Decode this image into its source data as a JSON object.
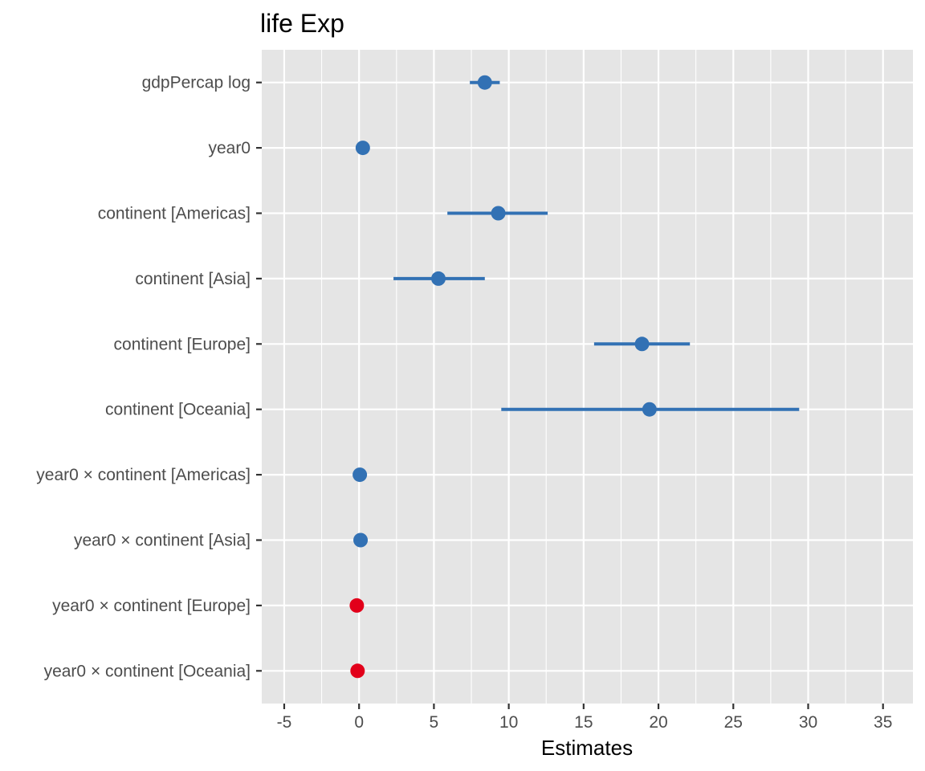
{
  "chart_data": {
    "type": "forest",
    "title": "life Exp",
    "xlabel": "Estimates",
    "ylabel": "",
    "xlim": [
      -6.5,
      37
    ],
    "xticks": [
      -5,
      0,
      5,
      10,
      15,
      20,
      25,
      30,
      35
    ],
    "xtick_labels": [
      "-5",
      "0",
      "5",
      "10",
      "15",
      "20",
      "25",
      "30",
      "35"
    ],
    "colors": {
      "positive": "#3271b4",
      "negative": "#e2001a",
      "panel": "#e5e5e5",
      "grid": "#ffffff"
    },
    "terms": [
      {
        "label": "gdpPercap log",
        "estimate": 8.4,
        "low": 7.4,
        "high": 9.4
      },
      {
        "label": "year0",
        "estimate": 0.25,
        "low": 0.15,
        "high": 0.35
      },
      {
        "label": "continent [Americas]",
        "estimate": 9.3,
        "low": 5.9,
        "high": 12.6
      },
      {
        "label": "continent [Asia]",
        "estimate": 5.3,
        "low": 2.3,
        "high": 8.4
      },
      {
        "label": "continent [Europe]",
        "estimate": 18.9,
        "low": 15.7,
        "high": 22.1
      },
      {
        "label": "continent [Oceania]",
        "estimate": 19.4,
        "low": 9.5,
        "high": 29.4
      },
      {
        "label": "year0 × continent [Americas]",
        "estimate": 0.05,
        "low": 0.0,
        "high": 0.1
      },
      {
        "label": "year0 × continent [Asia]",
        "estimate": 0.1,
        "low": 0.05,
        "high": 0.15
      },
      {
        "label": "year0 × continent [Europe]",
        "estimate": -0.15,
        "low": -0.2,
        "high": -0.1
      },
      {
        "label": "year0 × continent [Oceania]",
        "estimate": -0.1,
        "low": -0.15,
        "high": -0.05
      }
    ]
  }
}
